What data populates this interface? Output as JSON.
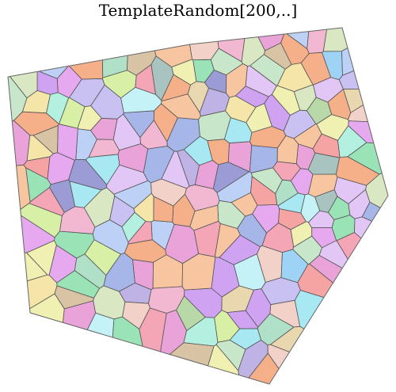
{
  "title": "TemplateRandom[200,..]",
  "mosaic": {
    "seed": 7,
    "cell_count": 200,
    "palette": [
      "#f4a6b7",
      "#c9c1f2",
      "#b3f0e0",
      "#f5e5a9",
      "#9fd3f5",
      "#d7f0a6",
      "#e9a3d9",
      "#a8e8f2",
      "#f7c59f",
      "#c8e6c9",
      "#bfb3e6",
      "#f2d1c9",
      "#9ae3b7",
      "#e6a9f0",
      "#a7b6e8",
      "#f0f0b3",
      "#d8c3a5",
      "#b8d8a8",
      "#f2b8d2",
      "#a9c4c0",
      "#c5f2f7",
      "#e2c6f5",
      "#f5b08a",
      "#bcd1f5",
      "#d9e7c2",
      "#9b9bd6",
      "#e9d7b0",
      "#b0e0c8",
      "#f5a3a3",
      "#cfa3f2"
    ]
  }
}
